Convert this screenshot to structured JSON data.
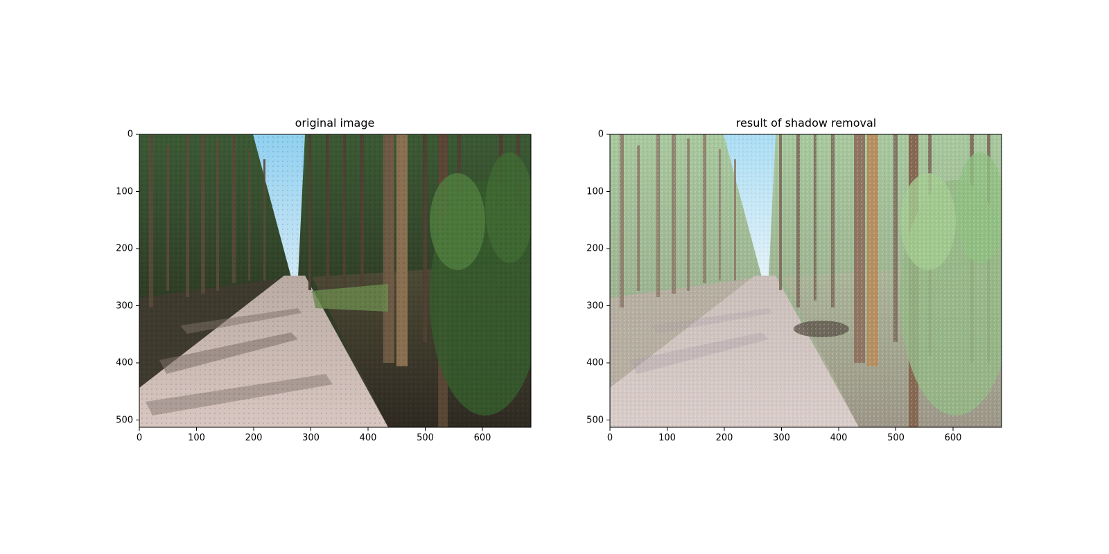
{
  "figure": {
    "panels": [
      {
        "title": "original image",
        "variant": "original",
        "x_ticks": [
          "0",
          "100",
          "200",
          "300",
          "400",
          "500",
          "600"
        ],
        "y_ticks": [
          "0",
          "100",
          "200",
          "300",
          "400",
          "500"
        ]
      },
      {
        "title": "result of shadow removal",
        "variant": "shadow-removed",
        "x_ticks": [
          "0",
          "100",
          "200",
          "300",
          "400",
          "500",
          "600"
        ],
        "y_ticks": [
          "0",
          "100",
          "200",
          "300",
          "400",
          "500"
        ]
      }
    ]
  }
}
